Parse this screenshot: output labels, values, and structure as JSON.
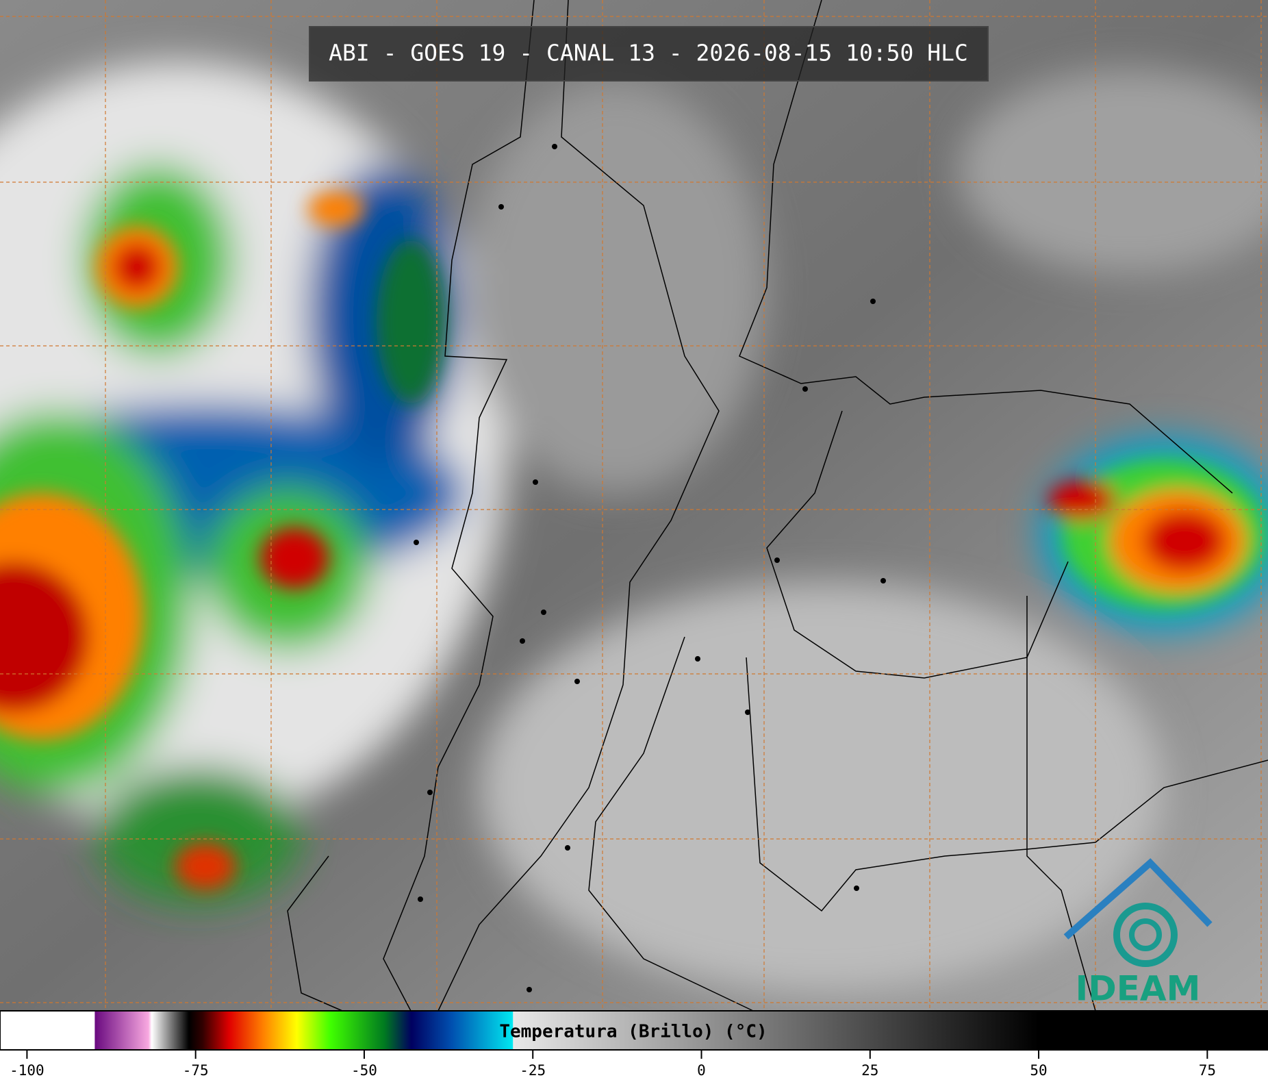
{
  "title": "ABI - GOES 19 - CANAL 13 - 2026-08-15 10:50 HLC",
  "logo": "IDEAM",
  "colorbar": {
    "label": "Temperatura (Brillo) (°C)",
    "lim": [
      -104,
      84
    ],
    "ticks": [
      -100,
      -75,
      -50,
      -25,
      0,
      25,
      50,
      75
    ],
    "stops": [
      {
        "value": -104,
        "color": "#ffffff"
      },
      {
        "value": -90,
        "color": "#ffffff"
      },
      {
        "value": -89.9,
        "color": "#6a0a80"
      },
      {
        "value": -82,
        "color": "#f8a8e0"
      },
      {
        "value": -81.5,
        "color": "#ffffff"
      },
      {
        "value": -76,
        "color": "#000000"
      },
      {
        "value": -74,
        "color": "#300000"
      },
      {
        "value": -70,
        "color": "#e00000"
      },
      {
        "value": -65,
        "color": "#ff8000"
      },
      {
        "value": -60,
        "color": "#ffff00"
      },
      {
        "value": -55,
        "color": "#40ff00"
      },
      {
        "value": -47,
        "color": "#007a20"
      },
      {
        "value": -43,
        "color": "#000060"
      },
      {
        "value": -37,
        "color": "#0050b0"
      },
      {
        "value": -28,
        "color": "#00e8f0"
      },
      {
        "value": -27.9,
        "color": "#e8e8e8"
      },
      {
        "value": 50,
        "color": "#000000"
      },
      {
        "value": 84,
        "color": "#000000"
      }
    ]
  }
}
